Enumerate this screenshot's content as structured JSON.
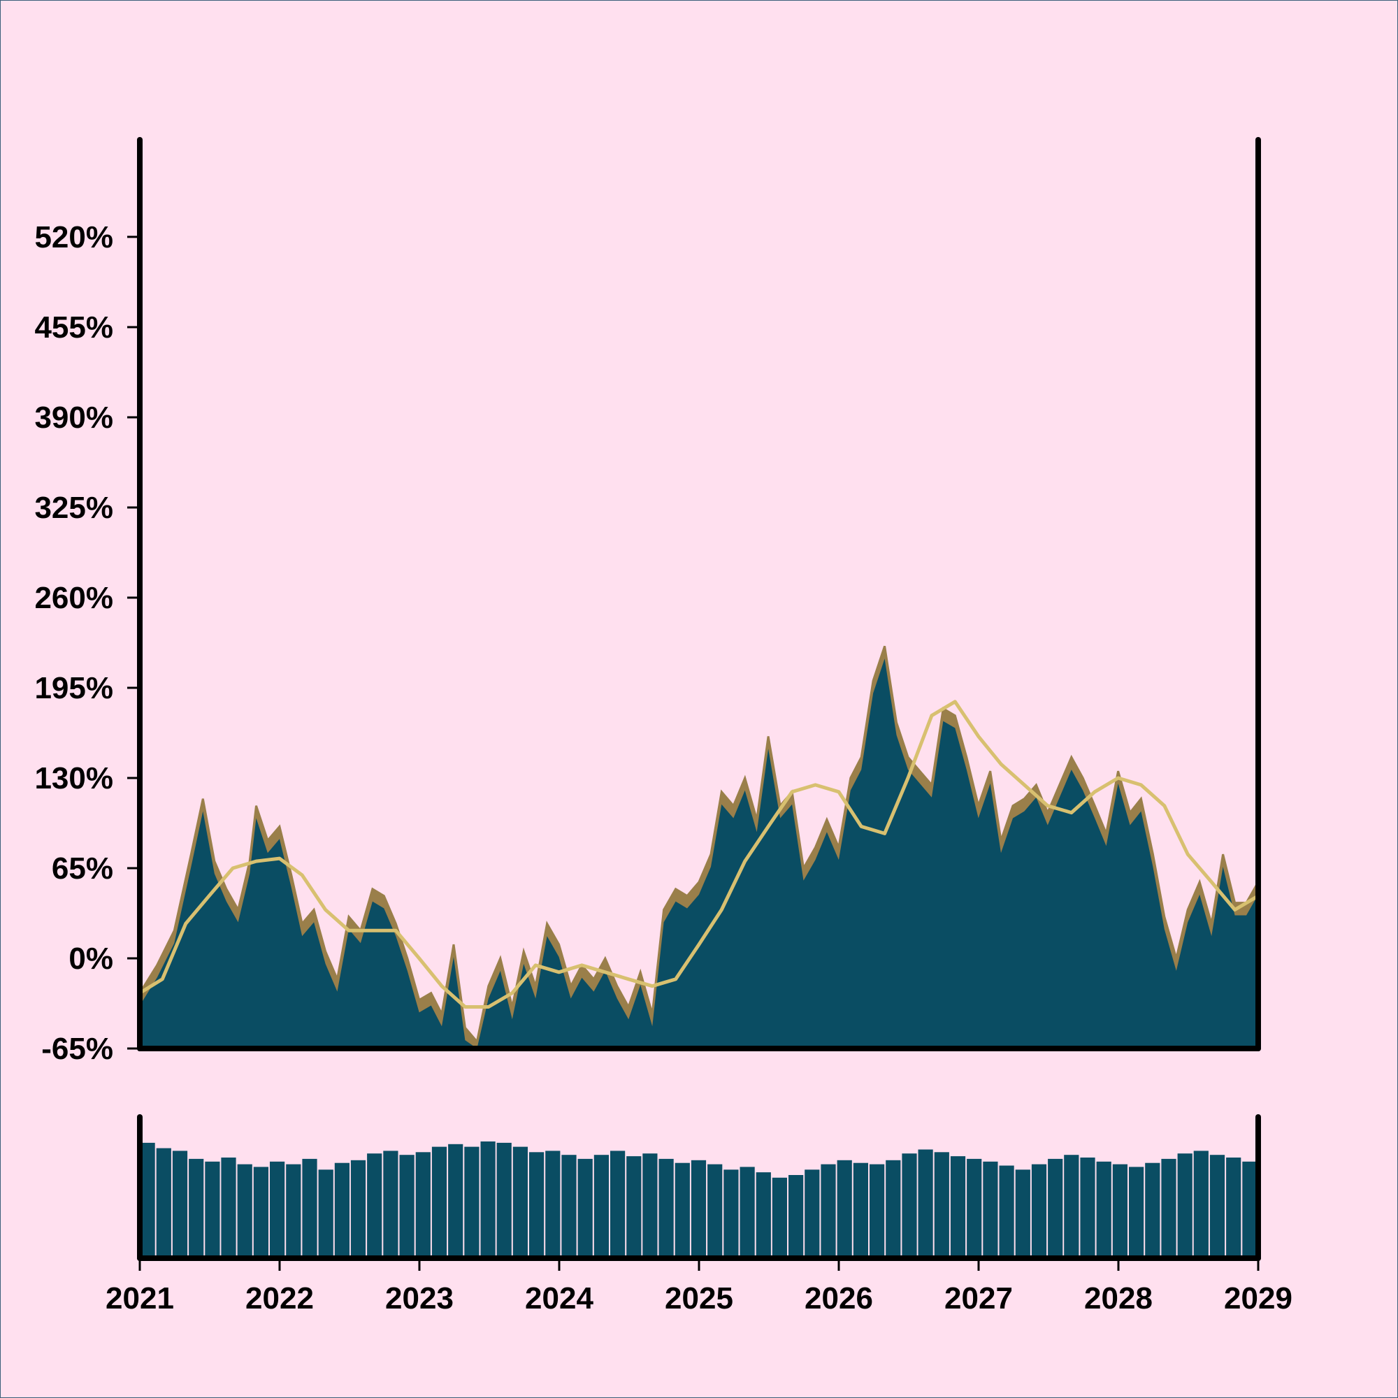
{
  "chart_data": [
    {
      "type": "area",
      "title": "",
      "xlabel": "",
      "ylabel": "",
      "ylim": [
        -65,
        590
      ],
      "xlim": [
        "2021-01-01",
        "2029-01-01"
      ],
      "y_ticks": [
        -65,
        0,
        65,
        130,
        195,
        260,
        325,
        390,
        455,
        520
      ],
      "y_tick_labels": [
        "-65%",
        "0%",
        "65%",
        "130%",
        "195%",
        "260%",
        "325%",
        "390%",
        "455%",
        "520%"
      ],
      "grid": false,
      "legend": "none",
      "colors": {
        "area": "#0a4d63",
        "outline": "#9a7f4a",
        "moving_average": "#d8c070"
      },
      "series": [
        {
          "x": [
            "2021-01-01",
            "2021-02-15",
            "2021-04-01",
            "2021-05-15",
            "2021-06-15",
            "2021-07-15",
            "2021-08-15",
            "2021-09-15",
            "2021-10-15",
            "2021-11-01",
            "2021-12-01",
            "2022-01-01",
            "2022-02-01",
            "2022-03-01",
            "2022-04-01",
            "2022-05-01",
            "2022-06-01",
            "2022-07-01",
            "2022-08-01",
            "2022-09-01",
            "2022-10-01",
            "2022-11-01",
            "2022-12-01",
            "2023-01-01",
            "2023-02-01",
            "2023-03-01",
            "2023-04-01",
            "2023-05-01",
            "2023-06-01",
            "2023-07-01",
            "2023-08-01",
            "2023-09-01",
            "2023-10-01",
            "2023-11-01",
            "2023-12-01",
            "2024-01-01",
            "2024-02-01",
            "2024-03-01",
            "2024-04-01",
            "2024-05-01",
            "2024-06-01",
            "2024-07-01",
            "2024-08-01",
            "2024-09-01",
            "2024-10-01",
            "2024-11-01",
            "2024-12-01",
            "2025-01-01",
            "2025-02-01",
            "2025-03-01",
            "2025-04-01",
            "2025-05-01",
            "2025-06-01",
            "2025-07-01",
            "2025-08-01",
            "2025-09-01",
            "2025-10-01",
            "2025-11-01",
            "2025-12-01",
            "2026-01-01",
            "2026-02-01",
            "2026-03-01",
            "2026-04-01",
            "2026-05-01",
            "2026-06-01",
            "2026-07-01",
            "2026-08-01",
            "2026-09-01",
            "2026-10-01",
            "2026-11-01",
            "2026-12-01",
            "2027-01-01",
            "2027-02-01",
            "2027-03-01",
            "2027-04-01",
            "2027-05-01",
            "2027-06-01",
            "2027-07-01",
            "2027-08-01",
            "2027-09-01",
            "2027-10-01",
            "2027-11-01",
            "2027-12-01",
            "2028-01-01",
            "2028-02-01",
            "2028-03-01",
            "2028-04-01",
            "2028-05-01",
            "2028-06-01",
            "2028-07-01",
            "2028-08-01",
            "2028-09-01",
            "2028-10-01",
            "2028-11-01",
            "2028-12-01",
            "2029-01-01"
          ],
          "y": [
            -25,
            -5,
            20,
            75,
            115,
            70,
            50,
            35,
            70,
            110,
            85,
            95,
            60,
            25,
            35,
            5,
            -15,
            30,
            20,
            50,
            45,
            25,
            0,
            -30,
            -25,
            -40,
            10,
            -50,
            -60,
            -20,
            0,
            -35,
            5,
            -20,
            25,
            10,
            -20,
            -5,
            -15,
            0,
            -20,
            -35,
            -10,
            -40,
            35,
            50,
            45,
            55,
            75,
            120,
            110,
            130,
            100,
            160,
            110,
            120,
            65,
            80,
            100,
            80,
            130,
            145,
            200,
            225,
            170,
            145,
            135,
            125,
            180,
            175,
            145,
            110,
            135,
            85,
            110,
            115,
            125,
            105,
            125,
            145,
            130,
            110,
            90,
            135,
            105,
            115,
            75,
            30,
            0,
            35,
            55,
            25,
            75,
            40,
            40,
            55
          ],
          "y_note": "outer area boundary (with brown band)"
        },
        {
          "x": [
            "2021-01-01",
            "2021-03-01",
            "2021-05-01",
            "2021-07-01",
            "2021-09-01",
            "2021-11-01",
            "2022-01-01",
            "2022-03-01",
            "2022-05-01",
            "2022-07-01",
            "2022-09-01",
            "2022-11-01",
            "2023-01-01",
            "2023-03-01",
            "2023-05-01",
            "2023-07-01",
            "2023-09-01",
            "2023-11-01",
            "2024-01-01",
            "2024-03-01",
            "2024-05-01",
            "2024-07-01",
            "2024-09-01",
            "2024-11-01",
            "2025-01-01",
            "2025-03-01",
            "2025-05-01",
            "2025-07-01",
            "2025-09-01",
            "2025-11-01",
            "2026-01-01",
            "2026-03-01",
            "2026-05-01",
            "2026-07-01",
            "2026-09-01",
            "2026-11-01",
            "2027-01-01",
            "2027-03-01",
            "2027-05-01",
            "2027-07-01",
            "2027-09-01",
            "2027-11-01",
            "2028-01-01",
            "2028-03-01",
            "2028-05-01",
            "2028-07-01",
            "2028-09-01",
            "2028-11-01",
            "2029-01-01"
          ],
          "y": [
            -25,
            -15,
            25,
            45,
            65,
            70,
            72,
            60,
            35,
            20,
            20,
            20,
            0,
            -20,
            -35,
            -35,
            -25,
            -5,
            -10,
            -5,
            -10,
            -15,
            -20,
            -15,
            10,
            35,
            70,
            95,
            120,
            125,
            120,
            95,
            90,
            130,
            175,
            185,
            160,
            140,
            125,
            110,
            105,
            120,
            130,
            125,
            110,
            75,
            55,
            35,
            45
          ]
        }
      ]
    },
    {
      "type": "bar",
      "title": "",
      "xlabel": "",
      "ylabel": "",
      "x_ticks": [
        "2021",
        "2022",
        "2023",
        "2024",
        "2025",
        "2026",
        "2027",
        "2028",
        "2029"
      ],
      "colors": {
        "bars": "#0a4d63"
      },
      "values": [
        0.86,
        0.82,
        0.8,
        0.74,
        0.72,
        0.75,
        0.7,
        0.68,
        0.72,
        0.7,
        0.74,
        0.66,
        0.71,
        0.73,
        0.78,
        0.8,
        0.77,
        0.79,
        0.83,
        0.85,
        0.83,
        0.87,
        0.86,
        0.83,
        0.79,
        0.8,
        0.77,
        0.74,
        0.77,
        0.8,
        0.76,
        0.78,
        0.74,
        0.71,
        0.73,
        0.7,
        0.66,
        0.68,
        0.64,
        0.6,
        0.62,
        0.66,
        0.7,
        0.73,
        0.71,
        0.7,
        0.73,
        0.78,
        0.81,
        0.79,
        0.76,
        0.74,
        0.72,
        0.69,
        0.66,
        0.7,
        0.74,
        0.77,
        0.75,
        0.72,
        0.7,
        0.68,
        0.71,
        0.74,
        0.78,
        0.8,
        0.77,
        0.75,
        0.72
      ]
    }
  ]
}
